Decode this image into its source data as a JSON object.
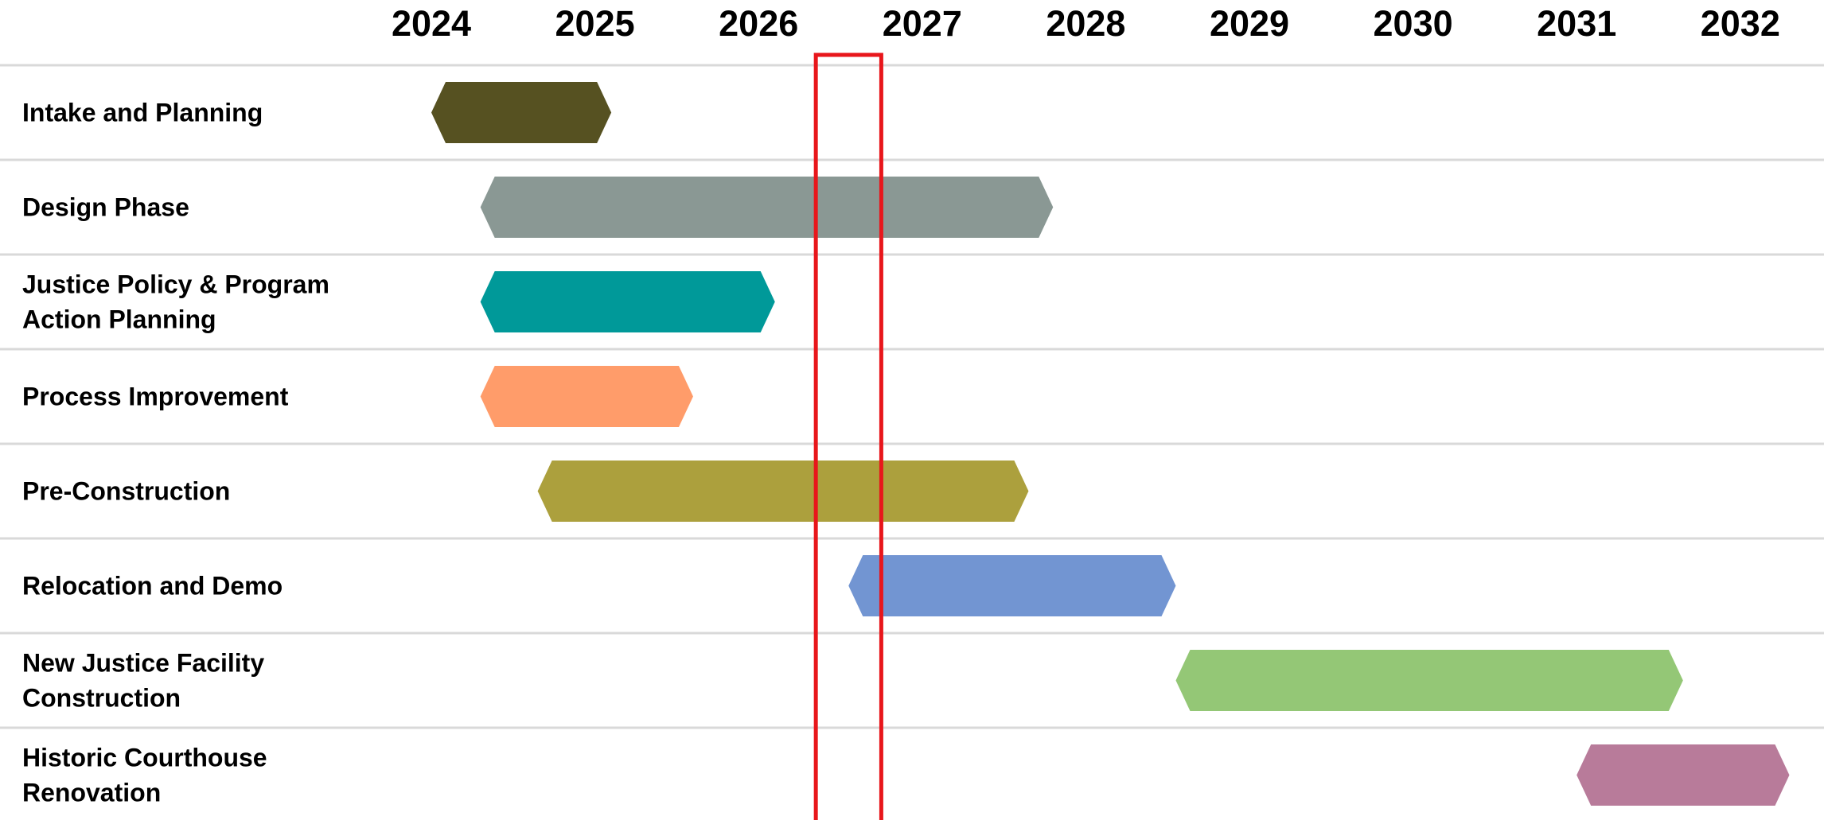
{
  "chart_data": {
    "type": "gantt",
    "years": [
      "2024",
      "2025",
      "2026",
      "2027",
      "2028",
      "2029",
      "2030",
      "2031",
      "2032"
    ],
    "x_range": [
      2023.7,
      2032.4
    ],
    "tasks": [
      {
        "label_lines": [
          "Intake and Planning"
        ],
        "start": 2024.0,
        "end": 2025.1,
        "color": "#565121"
      },
      {
        "label_lines": [
          "Design Phase"
        ],
        "start": 2024.3,
        "end": 2027.8,
        "color": "#8a9894"
      },
      {
        "label_lines": [
          "Justice Policy & Program",
          "Action Planning"
        ],
        "start": 2024.3,
        "end": 2026.1,
        "color": "#009999"
      },
      {
        "label_lines": [
          "Process Improvement"
        ],
        "start": 2024.3,
        "end": 2025.6,
        "color": "#ff9c6a"
      },
      {
        "label_lines": [
          "Pre-Construction"
        ],
        "start": 2024.65,
        "end": 2027.65,
        "color": "#aca03d"
      },
      {
        "label_lines": [
          "Relocation and Demo"
        ],
        "start": 2026.55,
        "end": 2028.55,
        "color": "#7295d2"
      },
      {
        "label_lines": [
          "New Justice Facility",
          "Construction"
        ],
        "start": 2028.55,
        "end": 2031.65,
        "color": "#94c776"
      },
      {
        "label_lines": [
          "Historic Courthouse",
          "Renovation"
        ],
        "start": 2031.0,
        "end": 2032.3,
        "color": "#b87b9a"
      }
    ],
    "highlight": {
      "start": 2026.35,
      "end": 2026.75,
      "color": "#e8161b"
    },
    "grid": true,
    "legend": "none"
  }
}
